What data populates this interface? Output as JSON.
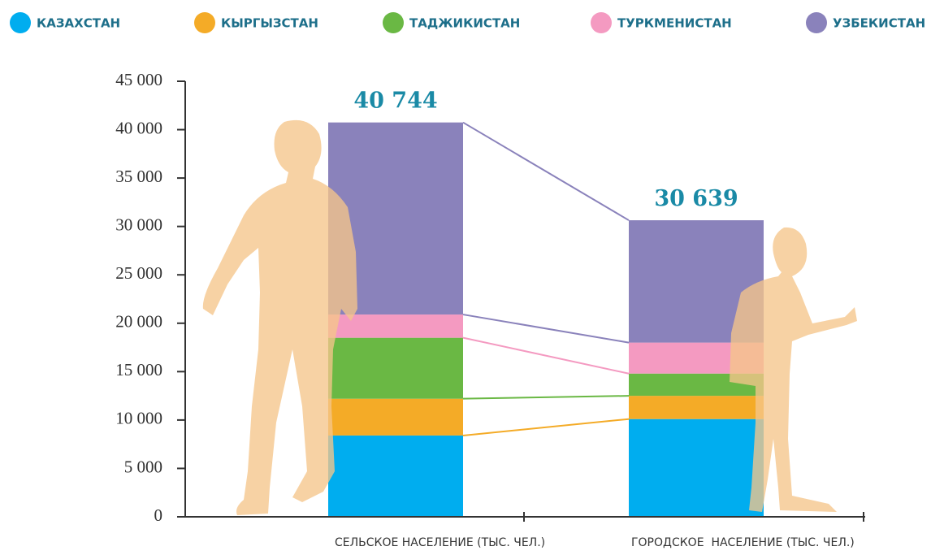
{
  "chart_data": {
    "type": "stacked_bar",
    "categories": [
      "СЕЛЬСКОЕ НАСЕЛЕНИЕ (ТЫС. ЧЕЛ.)",
      "ГОРОДСКОЕ  НАСЕЛЕНИЕ (ТЫС. ЧЕЛ.)"
    ],
    "series": [
      {
        "name": "КАЗАХСТАН",
        "color": "#00adef",
        "values": [
          8400,
          10100
        ]
      },
      {
        "name": "КЫРГЫЗСТАН",
        "color": "#f4ab27",
        "values": [
          3800,
          2400
        ]
      },
      {
        "name": "ТАДЖИКИСТАН",
        "color": "#6ab844",
        "values": [
          6300,
          2300
        ]
      },
      {
        "name": "ТУРКМЕНИСТАН",
        "color": "#f49ac1",
        "values": [
          2400,
          3200
        ]
      },
      {
        "name": "УЗБЕКИСТАН",
        "color": "#8a82bb",
        "values": [
          19844,
          12639
        ]
      }
    ],
    "totals": {
      "values": [
        40744,
        30639
      ],
      "value_labels": [
        "40 744",
        "30 639"
      ]
    },
    "ylim": [
      0,
      45000
    ],
    "yticks": [
      0,
      {
        "value": 5000,
        "label": "5 000"
      },
      {
        "value": 10000,
        "label": "10 000"
      },
      {
        "value": 15000,
        "label": "15 000"
      },
      {
        "value": 20000,
        "label": "20 000"
      },
      {
        "value": 25000,
        "label": "25 000"
      },
      {
        "value": 30000,
        "label": "30 000"
      },
      {
        "value": 35000,
        "label": "35 000"
      },
      {
        "value": 40000,
        "label": "40 000"
      },
      {
        "value": 45000,
        "label": "45 000"
      }
    ]
  }
}
